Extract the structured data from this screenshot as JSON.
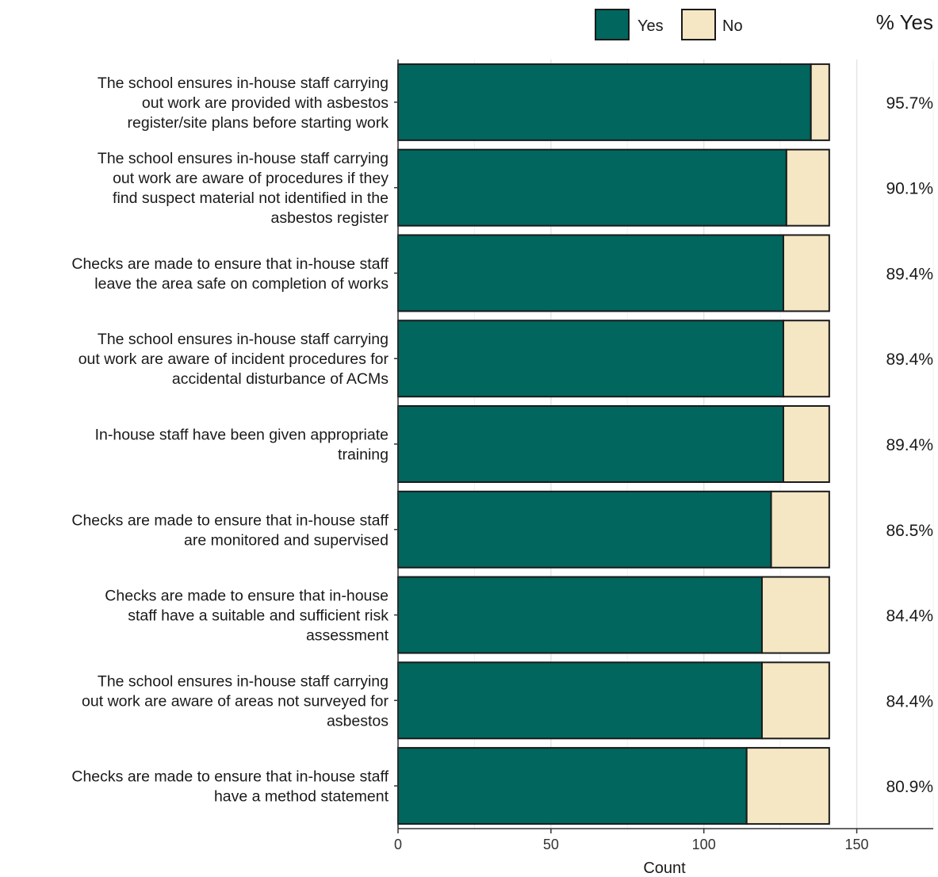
{
  "chart_data": {
    "type": "bar",
    "orientation": "horizontal",
    "stacked": true,
    "categories": [
      "The school ensures in-house staff carrying out work are provided with asbestos register/site plans before starting work",
      "The school ensures in-house staff carrying out work are aware of procedures if they find suspect material not identified in the asbestos register",
      "Checks are made to ensure that in-house staff leave the area safe on completion of works",
      "The school ensures in-house staff carrying out work are aware of incident procedures for accidental disturbance of ACMs",
      "In-house staff have been given appropriate training",
      "Checks are made to ensure that in-house staff are monitored and supervised",
      "Checks are made to ensure that in-house staff have a suitable and sufficient risk assessment",
      "The school ensures in-house staff carrying out work are aware of areas not surveyed for asbestos",
      "Checks are made to ensure that in-house staff have a method statement"
    ],
    "category_lines": [
      [
        "The school ensures in-house staff carrying",
        "out work are provided with asbestos",
        "register/site plans before starting work"
      ],
      [
        "The school ensures in-house staff carrying",
        "out work are aware of procedures if they",
        "find suspect material not identified in the",
        "asbestos register"
      ],
      [
        "Checks are made to ensure that in-house staff",
        "leave the area safe on completion of works"
      ],
      [
        "The school ensures in-house staff carrying",
        "out work are aware of incident procedures for",
        "accidental disturbance of ACMs"
      ],
      [
        "In-house staff have been given appropriate",
        "training"
      ],
      [
        "Checks are made to ensure that in-house staff",
        "are monitored and supervised"
      ],
      [
        "Checks are made to ensure that in-house",
        "staff have a suitable and sufficient risk",
        "assessment"
      ],
      [
        "The school ensures in-house staff carrying",
        "out work are aware of areas not surveyed for",
        "asbestos"
      ],
      [
        "Checks are made to ensure that in-house staff",
        "have a method statement"
      ]
    ],
    "series": [
      {
        "name": "Yes",
        "color": "#00665e",
        "values": [
          135,
          127,
          126,
          126,
          126,
          122,
          119,
          119,
          114
        ]
      },
      {
        "name": "No",
        "color": "#f5e6c4",
        "values": [
          6,
          14,
          15,
          15,
          15,
          19,
          22,
          22,
          27
        ]
      }
    ],
    "pct_yes_header": "% Yes",
    "pct_yes": [
      "95.7%",
      "90.1%",
      "89.4%",
      "89.4%",
      "89.4%",
      "86.5%",
      "84.4%",
      "84.4%",
      "80.9%"
    ],
    "xlabel": "Count",
    "xlim": [
      0,
      175
    ],
    "xticks": [
      0,
      50,
      100,
      150
    ],
    "grid": true,
    "legend_position": "top"
  }
}
